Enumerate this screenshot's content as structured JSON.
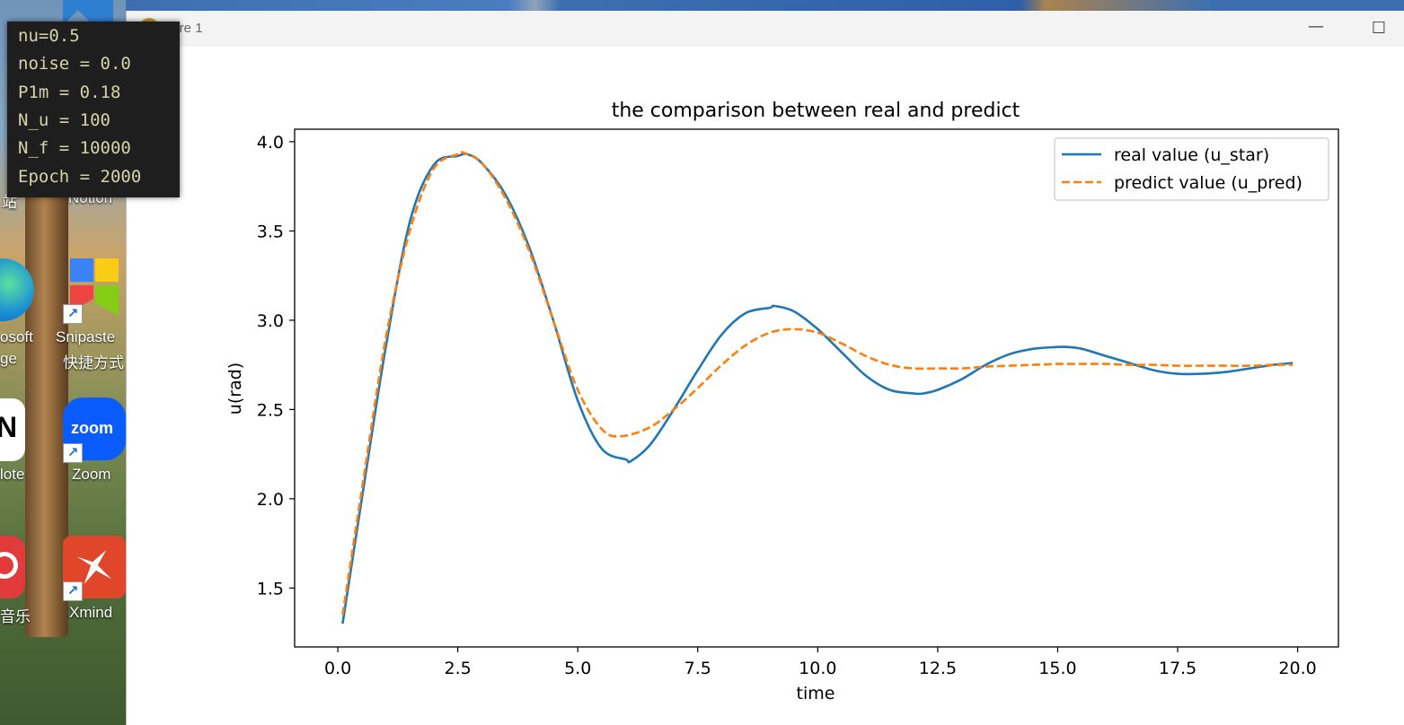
{
  "desktop": {
    "icons": [
      {
        "label": "osoft",
        "label2": "ge"
      },
      {
        "label": "Snipaste",
        "label2": "快捷方式"
      },
      {
        "label": "lote"
      },
      {
        "label": "Zoom",
        "badge": "zoom"
      },
      {
        "label": "音乐"
      },
      {
        "label": "Xmind"
      },
      {
        "label": "Notion"
      },
      {
        "label": "站"
      }
    ],
    "n_letter": "N"
  },
  "terminal": {
    "lines": [
      "nu=0.5",
      "noise = 0.0",
      "P1m = 0.18",
      "N_u = 100",
      "N_f = 10000",
      "Epoch = 2000"
    ]
  },
  "window": {
    "title": "gure 1",
    "minimize_glyph": "—",
    "maximize_glyph": "☐"
  },
  "chart_data": {
    "type": "line",
    "title": "the comparison between real and predict",
    "xlabel": "time",
    "ylabel": "u(rad)",
    "xlim": [
      -0.9,
      20.85
    ],
    "ylim": [
      1.17,
      4.07
    ],
    "xticks": [
      0.0,
      2.5,
      5.0,
      7.5,
      10.0,
      12.5,
      15.0,
      17.5,
      20.0
    ],
    "xtick_labels": [
      "0.0",
      "2.5",
      "5.0",
      "7.5",
      "10.0",
      "12.5",
      "15.0",
      "17.5",
      "20.0"
    ],
    "yticks": [
      1.5,
      2.0,
      2.5,
      3.0,
      3.5,
      4.0
    ],
    "ytick_labels": [
      "1.5",
      "2.0",
      "2.5",
      "3.0",
      "3.5",
      "4.0"
    ],
    "grid": false,
    "legend": "top-right",
    "series": [
      {
        "name": "real value (u_star)",
        "color": "#1f77b4",
        "style": "solid",
        "x": [
          0.1,
          0.5,
          1.0,
          1.5,
          2.0,
          2.5,
          2.7,
          3.0,
          3.5,
          4.0,
          4.5,
          5.0,
          5.5,
          6.0,
          6.1,
          6.5,
          7.0,
          7.5,
          8.0,
          8.5,
          9.0,
          9.1,
          9.5,
          10.0,
          10.5,
          11.0,
          11.5,
          12.0,
          12.2,
          12.5,
          13.0,
          13.5,
          14.0,
          14.5,
          15.0,
          15.2,
          15.5,
          16.0,
          16.5,
          17.0,
          17.5,
          18.0,
          18.5,
          19.0,
          19.5,
          19.9
        ],
        "y": [
          1.3,
          2.0,
          2.85,
          3.55,
          3.87,
          3.92,
          3.93,
          3.88,
          3.7,
          3.4,
          2.99,
          2.55,
          2.28,
          2.22,
          2.21,
          2.3,
          2.5,
          2.72,
          2.92,
          3.04,
          3.07,
          3.08,
          3.05,
          2.95,
          2.82,
          2.69,
          2.61,
          2.59,
          2.59,
          2.61,
          2.67,
          2.75,
          2.81,
          2.84,
          2.85,
          2.85,
          2.84,
          2.8,
          2.76,
          2.72,
          2.7,
          2.7,
          2.71,
          2.73,
          2.75,
          2.76
        ]
      },
      {
        "name": "predict value (u_pred)",
        "color": "#ff7f0e",
        "style": "dashed",
        "x": [
          0.1,
          0.5,
          1.0,
          1.5,
          2.0,
          2.5,
          2.6,
          3.0,
          3.5,
          4.0,
          4.5,
          5.0,
          5.5,
          5.9,
          6.5,
          7.0,
          7.5,
          8.0,
          8.5,
          9.0,
          9.5,
          10.0,
          10.5,
          11.0,
          11.5,
          12.0,
          12.5,
          13.0,
          13.5,
          14.0,
          14.5,
          15.0,
          15.5,
          16.0,
          16.5,
          17.0,
          17.5,
          18.0,
          18.5,
          19.0,
          19.5,
          19.9
        ],
        "y": [
          1.35,
          2.05,
          2.9,
          3.5,
          3.85,
          3.93,
          3.94,
          3.88,
          3.68,
          3.38,
          2.99,
          2.61,
          2.39,
          2.35,
          2.4,
          2.5,
          2.62,
          2.75,
          2.86,
          2.93,
          2.95,
          2.93,
          2.87,
          2.8,
          2.75,
          2.73,
          2.73,
          2.73,
          2.74,
          2.745,
          2.75,
          2.755,
          2.755,
          2.755,
          2.75,
          2.75,
          2.745,
          2.745,
          2.745,
          2.745,
          2.75,
          2.75
        ]
      }
    ]
  }
}
